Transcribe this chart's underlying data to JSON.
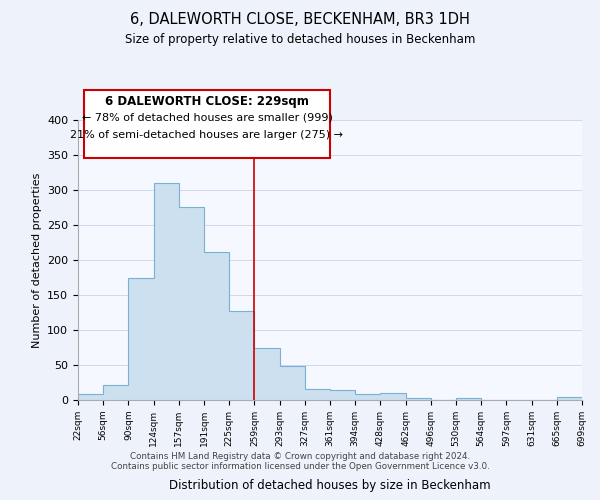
{
  "title": "6, DALEWORTH CLOSE, BECKENHAM, BR3 1DH",
  "subtitle": "Size of property relative to detached houses in Beckenham",
  "xlabel": "Distribution of detached houses by size in Beckenham",
  "ylabel": "Number of detached properties",
  "bin_labels": [
    "22sqm",
    "56sqm",
    "90sqm",
    "124sqm",
    "157sqm",
    "191sqm",
    "225sqm",
    "259sqm",
    "293sqm",
    "327sqm",
    "361sqm",
    "394sqm",
    "428sqm",
    "462sqm",
    "496sqm",
    "530sqm",
    "564sqm",
    "597sqm",
    "631sqm",
    "665sqm",
    "699sqm"
  ],
  "values": [
    8,
    22,
    174,
    310,
    276,
    211,
    127,
    74,
    48,
    16,
    15,
    8,
    10,
    3,
    0,
    3,
    0,
    0,
    0,
    4
  ],
  "bar_face_color": "#cce0f0",
  "bar_edge_color": "#7ab0d4",
  "annotation_box_edge": "#cc0000",
  "annotation_title": "6 DALEWORTH CLOSE: 229sqm",
  "annotation_line1": "← 78% of detached houses are smaller (999)",
  "annotation_line2": "21% of semi-detached houses are larger (275) →",
  "property_bin_index": 6,
  "ylim": [
    0,
    400
  ],
  "yticks": [
    0,
    50,
    100,
    150,
    200,
    250,
    300,
    350,
    400
  ],
  "footnote1": "Contains HM Land Registry data © Crown copyright and database right 2024.",
  "footnote2": "Contains public sector information licensed under the Open Government Licence v3.0.",
  "bg_color": "#eef2fa",
  "plot_bg_color": "#f5f8ff",
  "grid_color": "#d0d8ee"
}
